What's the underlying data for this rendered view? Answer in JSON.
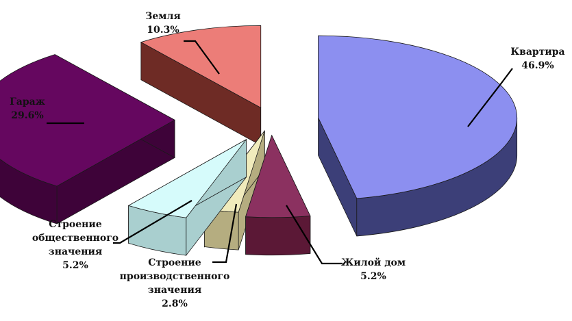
{
  "chart_data": {
    "type": "pie",
    "style": "exploded-3d",
    "legend": "none",
    "slices": [
      {
        "label_lines": [
          "Квартира"
        ],
        "value_label": "46.9%",
        "value": 46.9,
        "color": "#8c8ff0",
        "side_color": "#3c3f78"
      },
      {
        "label_lines": [
          "Жилой дом"
        ],
        "value_label": "5.2%",
        "value": 5.2,
        "color": "#8b3160",
        "side_color": "#5b1836"
      },
      {
        "label_lines": [
          "Строение",
          "производственного",
          "значения"
        ],
        "value_label": "2.8%",
        "value": 2.8,
        "color": "#f0ebbc",
        "side_color": "#b5ad80"
      },
      {
        "label_lines": [
          "Строение",
          "общественного",
          "значения"
        ],
        "value_label": "5.2%",
        "value": 5.2,
        "color": "#d6fbfb",
        "side_color": "#a9cfcf"
      },
      {
        "label_lines": [
          "Гараж"
        ],
        "value_label": "29.6%",
        "value": 29.6,
        "color": "#65075f",
        "side_color": "#3e0339"
      },
      {
        "label_lines": [
          "Земля"
        ],
        "value_label": "10.3%",
        "value": 10.3,
        "color": "#ec7d78",
        "side_color": "#6e2b25"
      }
    ]
  }
}
